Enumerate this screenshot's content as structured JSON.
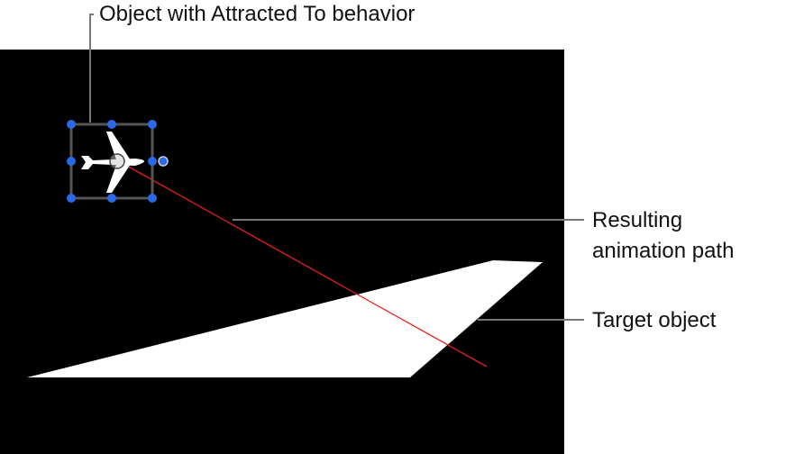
{
  "callouts": {
    "object": "Object with Attracted To behavior",
    "path_line1": "Resulting",
    "path_line2": "animation path",
    "target": "Target object"
  },
  "colors": {
    "canvas": "#000000",
    "path": "#e8201a",
    "handle": "#2a6ae8",
    "callout_line": "#777777"
  },
  "icons": [
    "airplane-icon",
    "anchor-point-icon",
    "selection-handle-icon",
    "rotation-handle-icon"
  ]
}
